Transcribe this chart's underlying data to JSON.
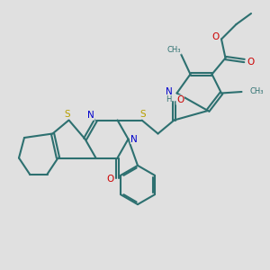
{
  "background_color": "#e0e0e0",
  "bond_color": "#2d7070",
  "bond_width": 1.5,
  "dbo": 0.055,
  "atom_colors": {
    "N": "#0000cc",
    "O": "#cc0000",
    "S": "#b8a000",
    "H": "#2d7070",
    "C": "#2d7070"
  },
  "fs": 7.5,
  "fs_small": 6.5
}
